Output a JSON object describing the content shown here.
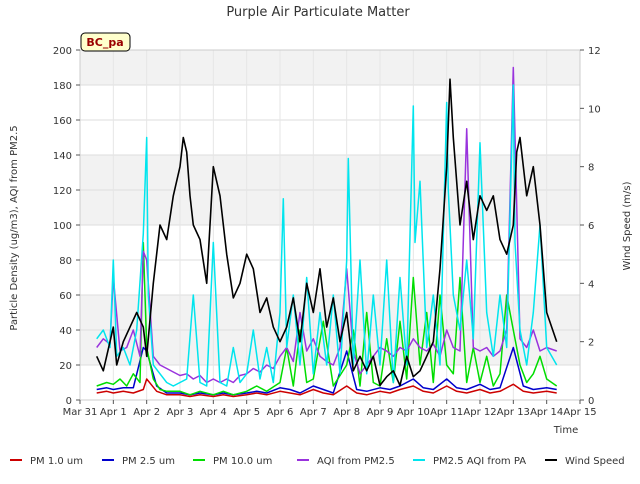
{
  "chart_data": {
    "type": "line",
    "title": "Purple Air Particulate Matter",
    "site_badge": "BC_pa",
    "xlabel": "Time",
    "ylabel": "Particle Density (ug/m3), AQI from PM2.5",
    "y2label": "Wind Speed (m/s)",
    "ylim": [
      0,
      200
    ],
    "y2lim": [
      0,
      12
    ],
    "xlim": [
      0,
      15
    ],
    "x_ticks": [
      {
        "value": 0,
        "label": "Mar 31"
      },
      {
        "value": 1,
        "label": "Apr 1"
      },
      {
        "value": 2,
        "label": "Apr 2"
      },
      {
        "value": 3,
        "label": "Apr 3"
      },
      {
        "value": 4,
        "label": "Apr 4"
      },
      {
        "value": 5,
        "label": "Apr 5"
      },
      {
        "value": 6,
        "label": "Apr 6"
      },
      {
        "value": 7,
        "label": "Apr 7"
      },
      {
        "value": 8,
        "label": "Apr 8"
      },
      {
        "value": 9,
        "label": "Apr 9"
      },
      {
        "value": 10,
        "label": "Apr 10"
      },
      {
        "value": 11,
        "label": "Apr 11"
      },
      {
        "value": 12,
        "label": "Apr 12"
      },
      {
        "value": 13,
        "label": "Apr 13"
      },
      {
        "value": 14,
        "label": "Apr 14"
      },
      {
        "value": 15,
        "label": "Apr 15"
      }
    ],
    "y_ticks": [
      0,
      20,
      40,
      60,
      80,
      100,
      120,
      140,
      160,
      180,
      200
    ],
    "y2_ticks": [
      0,
      2,
      4,
      6,
      8,
      10,
      12
    ],
    "grid": true,
    "legend_position": "bottom",
    "series": [
      {
        "name": "PM 1.0 um",
        "color": "#cc0000",
        "axis": "left",
        "x": [
          0.5,
          0.8,
          1.0,
          1.3,
          1.6,
          1.9,
          2.0,
          2.3,
          2.6,
          3.0,
          3.3,
          3.6,
          4.0,
          4.3,
          4.6,
          5.0,
          5.3,
          5.6,
          6.0,
          6.3,
          6.6,
          7.0,
          7.3,
          7.6,
          8.0,
          8.3,
          8.6,
          9.0,
          9.3,
          9.6,
          10.0,
          10.3,
          10.6,
          11.0,
          11.3,
          11.6,
          12.0,
          12.3,
          12.6,
          13.0,
          13.3,
          13.6,
          14.0,
          14.3
        ],
        "values": [
          4,
          5,
          4,
          5,
          4,
          6,
          12,
          5,
          3,
          3,
          2,
          3,
          2,
          3,
          2,
          3,
          4,
          3,
          5,
          4,
          3,
          6,
          4,
          3,
          8,
          4,
          3,
          5,
          4,
          6,
          8,
          5,
          4,
          8,
          5,
          4,
          6,
          4,
          5,
          9,
          5,
          4,
          5,
          4
        ]
      },
      {
        "name": "PM 2.5 um",
        "color": "#0000cc",
        "axis": "left",
        "x": [
          0.5,
          0.8,
          1.0,
          1.3,
          1.6,
          1.9,
          2.0,
          2.3,
          2.6,
          3.0,
          3.3,
          3.6,
          4.0,
          4.3,
          4.6,
          5.0,
          5.3,
          5.6,
          6.0,
          6.3,
          6.6,
          7.0,
          7.3,
          7.6,
          8.0,
          8.3,
          8.6,
          9.0,
          9.3,
          9.6,
          10.0,
          10.3,
          10.6,
          11.0,
          11.3,
          11.6,
          12.0,
          12.3,
          12.6,
          13.0,
          13.3,
          13.6,
          14.0,
          14.3
        ],
        "values": [
          6,
          7,
          6,
          7,
          7,
          30,
          28,
          8,
          4,
          4,
          3,
          4,
          3,
          4,
          3,
          4,
          5,
          4,
          7,
          6,
          4,
          8,
          6,
          4,
          28,
          6,
          5,
          7,
          6,
          8,
          12,
          7,
          6,
          12,
          7,
          6,
          9,
          6,
          7,
          30,
          8,
          6,
          7,
          6
        ]
      },
      {
        "name": "PM 10.0 um",
        "color": "#00dd00",
        "axis": "left",
        "x": [
          0.5,
          0.8,
          1.0,
          1.2,
          1.4,
          1.6,
          1.8,
          1.9,
          2.0,
          2.2,
          2.4,
          2.6,
          3.0,
          3.3,
          3.6,
          4.0,
          4.3,
          4.6,
          5.0,
          5.3,
          5.6,
          6.0,
          6.2,
          6.4,
          6.6,
          6.8,
          7.0,
          7.3,
          7.6,
          8.0,
          8.2,
          8.4,
          8.6,
          8.8,
          9.0,
          9.2,
          9.4,
          9.6,
          9.8,
          10.0,
          10.2,
          10.4,
          10.6,
          10.8,
          11.0,
          11.2,
          11.4,
          11.6,
          11.8,
          12.0,
          12.2,
          12.4,
          12.6,
          12.8,
          13.0,
          13.2,
          13.4,
          13.6,
          13.8,
          14.0,
          14.3
        ],
        "values": [
          8,
          10,
          9,
          12,
          8,
          15,
          10,
          90,
          30,
          12,
          6,
          5,
          5,
          3,
          5,
          3,
          5,
          3,
          5,
          8,
          5,
          10,
          30,
          8,
          40,
          10,
          12,
          45,
          8,
          20,
          40,
          8,
          50,
          10,
          8,
          35,
          10,
          45,
          12,
          70,
          20,
          50,
          10,
          60,
          20,
          15,
          70,
          10,
          30,
          10,
          25,
          8,
          15,
          60,
          40,
          20,
          10,
          15,
          25,
          12,
          8
        ]
      },
      {
        "name": "AQI from PM2.5",
        "color": "#9933dd",
        "axis": "left",
        "x": [
          0.5,
          0.7,
          0.9,
          1.0,
          1.2,
          1.4,
          1.6,
          1.8,
          1.9,
          2.0,
          2.2,
          2.4,
          2.6,
          2.8,
          3.0,
          3.2,
          3.4,
          3.6,
          3.8,
          4.0,
          4.2,
          4.4,
          4.6,
          4.8,
          5.0,
          5.2,
          5.4,
          5.6,
          5.8,
          6.0,
          6.2,
          6.4,
          6.6,
          6.8,
          7.0,
          7.2,
          7.4,
          7.6,
          7.8,
          8.0,
          8.2,
          8.4,
          8.6,
          8.8,
          9.0,
          9.2,
          9.4,
          9.6,
          9.8,
          10.0,
          10.2,
          10.4,
          10.6,
          10.8,
          11.0,
          11.2,
          11.4,
          11.6,
          11.8,
          12.0,
          12.2,
          12.4,
          12.6,
          12.8,
          13.0,
          13.2,
          13.4,
          13.6,
          13.8,
          14.0,
          14.3
        ],
        "values": [
          30,
          35,
          32,
          70,
          28,
          30,
          40,
          25,
          85,
          80,
          25,
          20,
          18,
          16,
          14,
          15,
          12,
          14,
          10,
          12,
          10,
          12,
          10,
          14,
          15,
          18,
          16,
          20,
          18,
          25,
          30,
          22,
          50,
          28,
          35,
          25,
          22,
          20,
          30,
          75,
          28,
          15,
          20,
          25,
          30,
          28,
          25,
          30,
          28,
          35,
          30,
          28,
          32,
          25,
          40,
          30,
          28,
          155,
          30,
          28,
          30,
          25,
          28,
          40,
          190,
          35,
          30,
          40,
          28,
          30,
          28
        ]
      },
      {
        "name": "PM2.5 AQI from PA",
        "color": "#00e5ee",
        "axis": "left",
        "x": [
          0.5,
          0.7,
          0.9,
          1.0,
          1.1,
          1.3,
          1.5,
          1.7,
          1.9,
          2.0,
          2.05,
          2.2,
          2.4,
          2.6,
          2.8,
          3.0,
          3.2,
          3.4,
          3.6,
          3.8,
          4.0,
          4.2,
          4.4,
          4.6,
          4.8,
          5.0,
          5.2,
          5.4,
          5.6,
          5.8,
          6.0,
          6.1,
          6.2,
          6.4,
          6.6,
          6.8,
          7.0,
          7.2,
          7.4,
          7.6,
          7.8,
          8.0,
          8.05,
          8.2,
          8.4,
          8.6,
          8.8,
          9.0,
          9.2,
          9.4,
          9.6,
          9.8,
          10.0,
          10.05,
          10.2,
          10.4,
          10.6,
          10.8,
          11.0,
          11.05,
          11.2,
          11.4,
          11.6,
          11.8,
          12.0,
          12.2,
          12.4,
          12.6,
          12.8,
          13.0,
          13.05,
          13.2,
          13.4,
          13.6,
          13.8,
          14.0,
          14.3
        ],
        "values": [
          35,
          40,
          30,
          80,
          25,
          30,
          20,
          40,
          95,
          150,
          60,
          20,
          15,
          10,
          8,
          10,
          12,
          60,
          10,
          8,
          90,
          10,
          8,
          30,
          10,
          15,
          40,
          12,
          30,
          10,
          50,
          115,
          30,
          60,
          20,
          70,
          15,
          50,
          20,
          60,
          15,
          80,
          138,
          20,
          80,
          15,
          60,
          20,
          80,
          10,
          70,
          20,
          168,
          90,
          125,
          30,
          60,
          20,
          170,
          120,
          60,
          40,
          80,
          35,
          147,
          50,
          25,
          60,
          30,
          180,
          90,
          40,
          20,
          50,
          100,
          30,
          20
        ]
      },
      {
        "name": "Wind Speed",
        "color": "#000000",
        "axis": "right",
        "x": [
          0.5,
          0.7,
          0.9,
          1.0,
          1.1,
          1.3,
          1.5,
          1.7,
          1.9,
          2.0,
          2.2,
          2.4,
          2.6,
          2.8,
          3.0,
          3.1,
          3.2,
          3.3,
          3.4,
          3.6,
          3.8,
          4.0,
          4.2,
          4.4,
          4.6,
          4.8,
          5.0,
          5.2,
          5.4,
          5.6,
          5.8,
          6.0,
          6.2,
          6.4,
          6.6,
          6.8,
          7.0,
          7.2,
          7.4,
          7.6,
          7.8,
          8.0,
          8.2,
          8.4,
          8.6,
          8.8,
          9.0,
          9.2,
          9.4,
          9.6,
          9.8,
          10.0,
          10.2,
          10.4,
          10.6,
          10.8,
          11.0,
          11.1,
          11.2,
          11.4,
          11.6,
          11.8,
          12.0,
          12.2,
          12.4,
          12.6,
          12.8,
          13.0,
          13.1,
          13.2,
          13.4,
          13.6,
          13.8,
          14.0,
          14.3
        ],
        "values": [
          1.5,
          1.0,
          2.0,
          2.5,
          1.2,
          2.0,
          2.5,
          3.0,
          2.5,
          1.5,
          4.0,
          6.0,
          5.5,
          7.0,
          8.0,
          9.0,
          8.5,
          7.0,
          6.0,
          5.5,
          4.0,
          8.0,
          7.0,
          5.0,
          3.5,
          4.0,
          5.0,
          4.5,
          3.0,
          3.5,
          2.5,
          2.0,
          2.5,
          3.5,
          2.0,
          4.0,
          3.0,
          4.5,
          2.5,
          3.5,
          2.0,
          3.0,
          1.0,
          1.5,
          1.0,
          1.5,
          0.5,
          0.8,
          1.0,
          0.5,
          1.5,
          0.8,
          1.0,
          1.5,
          2.0,
          4.5,
          8.0,
          11.0,
          9.0,
          6.0,
          7.5,
          5.5,
          7.0,
          6.5,
          7.0,
          5.5,
          5.0,
          6.0,
          8.5,
          9.0,
          7.0,
          8.0,
          6.0,
          3.0,
          2.0
        ]
      }
    ]
  }
}
